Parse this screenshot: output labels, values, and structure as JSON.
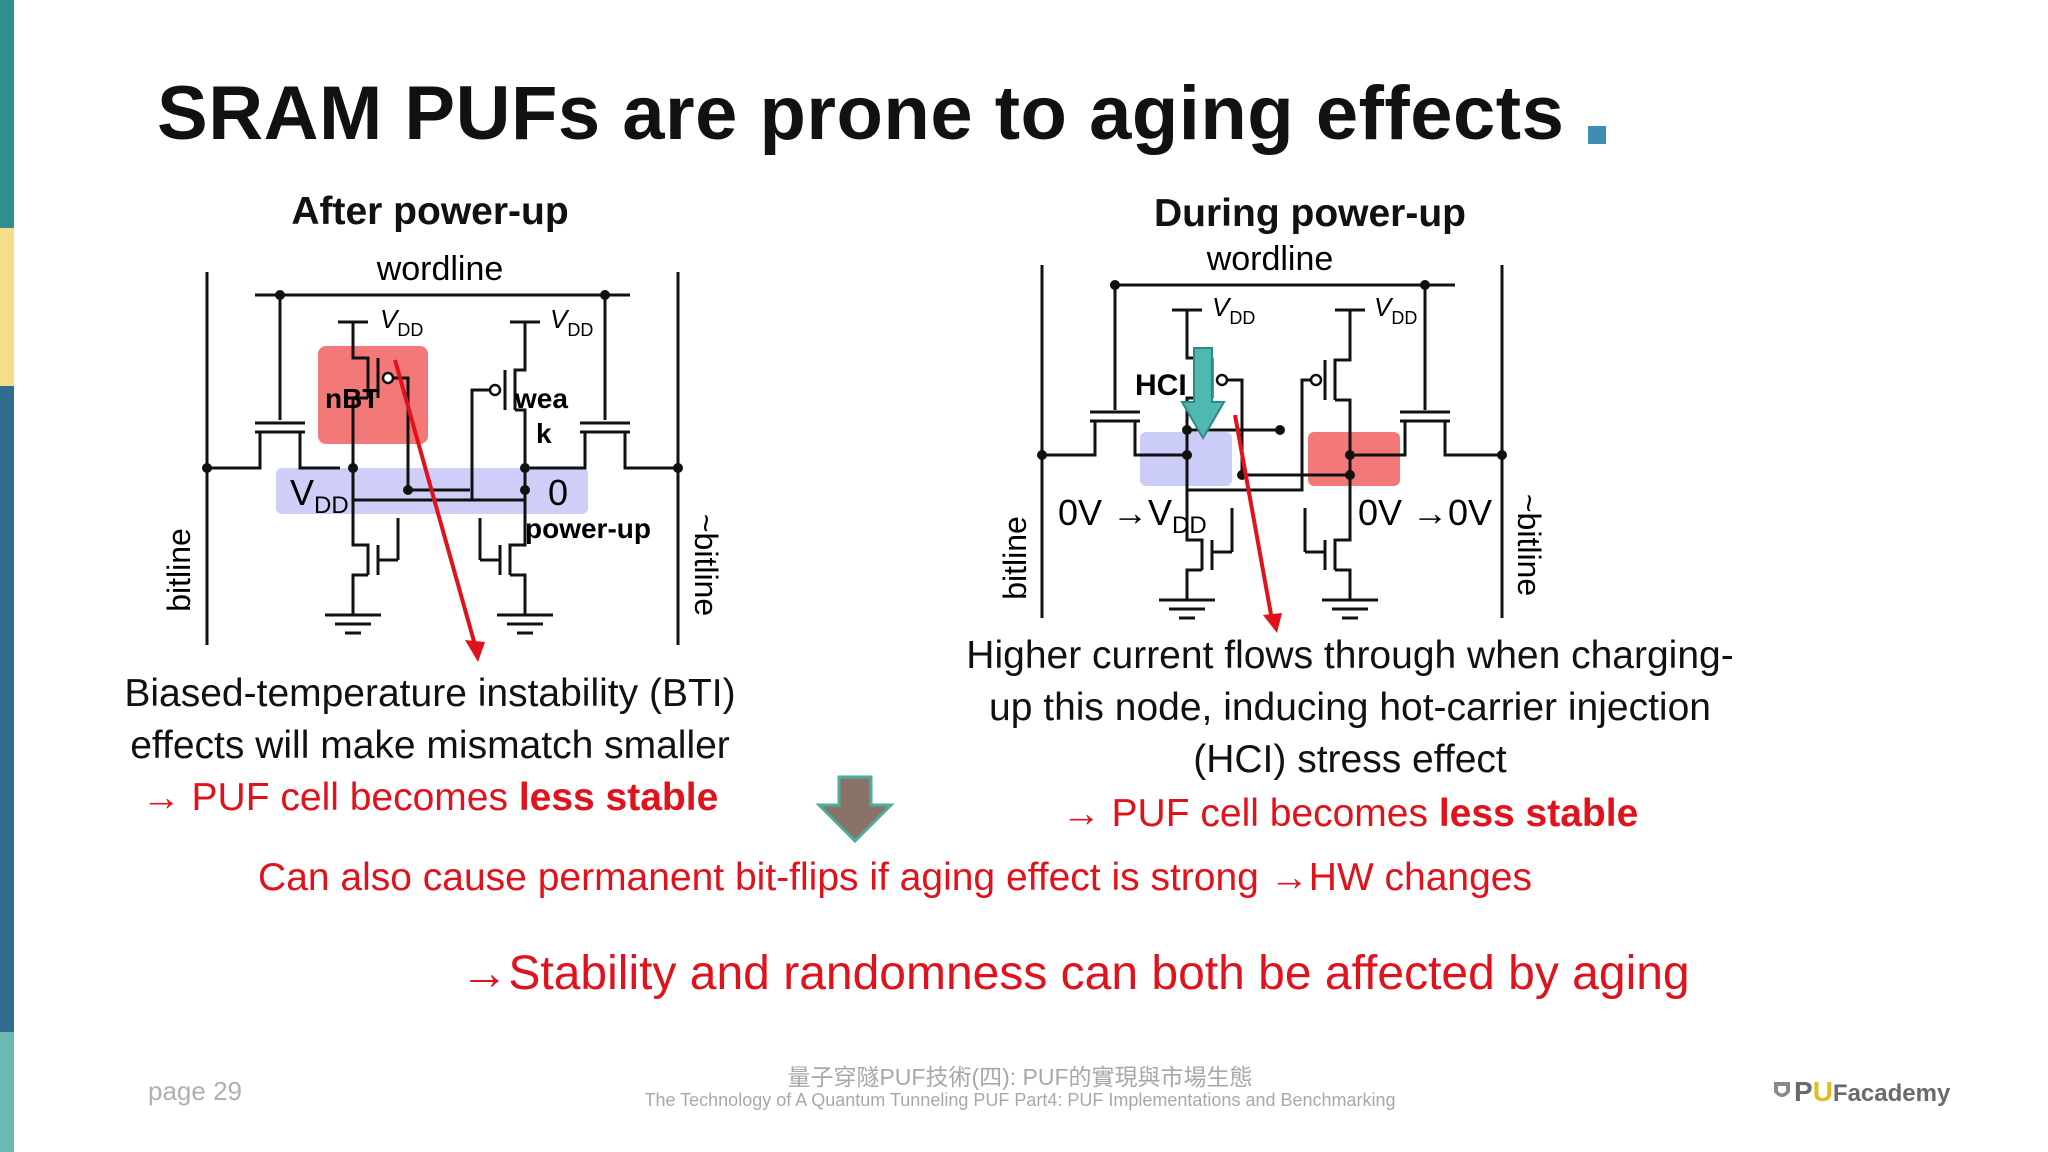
{
  "title": "SRAM PUFs are prone to aging effects",
  "colors": {
    "accent": "#3d8eb0",
    "red": "#e0121b",
    "highlight_red": "#f26a6a",
    "highlight_blue": "#c7c6f8",
    "arrow_brown": "#8b7268",
    "arrow_teal": "#4fb8b0"
  },
  "left_panel": {
    "heading": "After power-up",
    "wordline": "wordline",
    "vdd": "V",
    "vdd_sub": "DD",
    "node_left_v": "V",
    "node_left_sub": "DD",
    "node_right": "0",
    "label_nbt": "nBT",
    "label_weak_1": "wea",
    "label_weak_2": "k",
    "label_powerup": "power-up",
    "bitline": "bitline",
    "bitline_bar": "~bitline",
    "caption_line1": "Biased-temperature instability (BTI)",
    "caption_line2": "effects will make mismatch smaller",
    "result_prefix": "→ PUF cell becomes ",
    "result_bold": "less stable"
  },
  "right_panel": {
    "heading": "During power-up",
    "wordline": "wordline",
    "vdd": "V",
    "vdd_sub": "DD",
    "label_hci": "HCI",
    "node_left_text": "0V →V",
    "node_left_sub": "DD",
    "node_right_text": "0V →0V",
    "bitline": "bitline",
    "bitline_bar": "~bitline",
    "caption_line1": "Higher current flows through when charging-",
    "caption_line2": "up this node, inducing hot-carrier injection",
    "caption_line3": "(HCI) stress effect",
    "result_prefix": "→ PUF cell becomes ",
    "result_bold": "less stable"
  },
  "bitflip_text": "Can also cause permanent bit-flips if aging effect is strong",
  "bitflip_result": "→HW changes",
  "conclusion": "→Stability and randomness can both be affected by aging",
  "footer": {
    "page": "page 29",
    "chinese_title": "量子穿隧PUF技術(四): PUF的實現與市場生態",
    "english_title": "The Technology of A Quantum Tunneling PUF Part4: PUF Implementations and Benchmarking",
    "logo_p": "P",
    "logo_u": "U",
    "logo_rest": "Facademy"
  }
}
